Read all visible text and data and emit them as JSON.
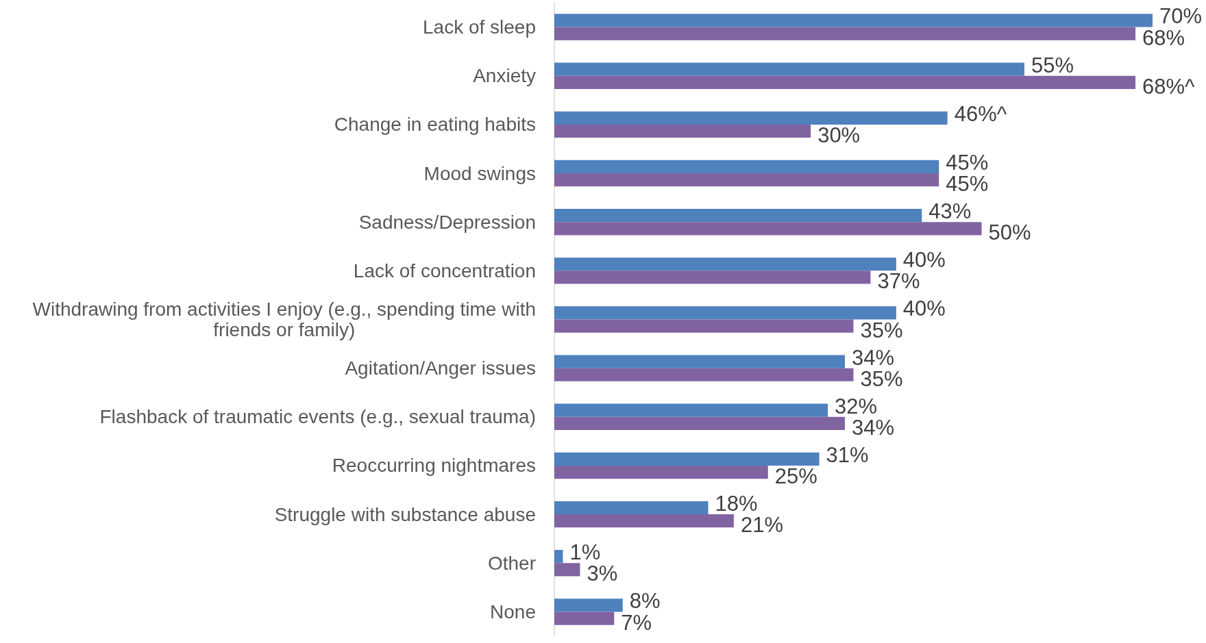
{
  "chart_data": {
    "type": "bar",
    "orientation": "horizontal",
    "tick_labels": "y",
    "categories": [
      "Lack of sleep",
      "Anxiety",
      "Change in eating habits",
      "Mood swings",
      "Sadness/Depression",
      "Lack of concentration",
      "Withdrawing from activities I enjoy (e.g., spending time with friends or family)",
      "Agitation/Anger issues",
      "Flashback of traumatic events (e.g., sexual trauma)",
      "Reoccurring nightmares",
      "Struggle with substance abuse",
      "Other",
      "None"
    ],
    "series": [
      {
        "color": "#4f81bd",
        "values": [
          70,
          55,
          46,
          45,
          43,
          40,
          40,
          34,
          32,
          31,
          18,
          1,
          8
        ],
        "value_labels": [
          "70%",
          "55%",
          "46%^",
          "45%",
          "43%",
          "40%",
          "40%",
          "34%",
          "32%",
          "31%",
          "18%",
          "1%",
          "8%"
        ]
      },
      {
        "color": "#8064a2",
        "values": [
          68,
          68,
          30,
          45,
          50,
          37,
          35,
          35,
          34,
          25,
          21,
          3,
          7
        ],
        "value_labels": [
          "68%",
          "68%^",
          "30%",
          "45%",
          "50%",
          "37%",
          "35%",
          "35%",
          "34%",
          "25%",
          "21%",
          "3%",
          "7%"
        ]
      }
    ]
  }
}
